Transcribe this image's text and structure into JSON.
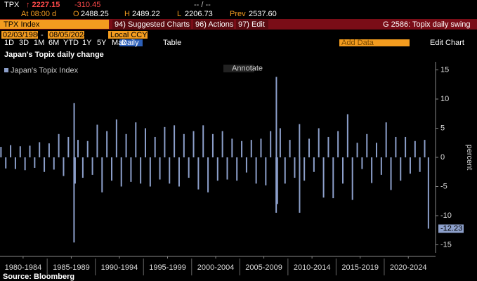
{
  "header": {
    "ticker": "TPX",
    "last": "↑ 2227.15",
    "change": "-310.45",
    "bid_ask": "-- / --",
    "time": "At 08:00 d",
    "open_label": "O",
    "open": "2488.25",
    "high_label": "H",
    "high": "2489.22",
    "low_label": "L",
    "low": "2206.73",
    "prev_label": "Prev",
    "prev": "2537.60"
  },
  "toolbar": {
    "security": "TPX Index",
    "suggested": "94) Suggested Charts",
    "actions": "96) Actions",
    "edit": "97) Edit",
    "chart_id": "G 2586: Topix daily swing",
    "start_date": "02/03/1980",
    "end_date": "08/05/2024",
    "currency": "Local CCY",
    "periods": [
      "1D",
      "3D",
      "1M",
      "6M",
      "YTD",
      "1Y",
      "5Y",
      "Max"
    ],
    "frequency": "Daily",
    "table": "Table",
    "add_data": "Add Data",
    "edit_chart": "Edit Chart",
    "annotate": "Annotate"
  },
  "chart_data": {
    "type": "bar",
    "title": "Japan's Topix daily change",
    "y_label": "percent",
    "x": [
      1980.2,
      1980.7,
      1981.2,
      1981.7,
      1982.2,
      1982.7,
      1983.2,
      1983.7,
      1984.2,
      1984.7,
      1985.2,
      1985.7,
      1986.2,
      1986.7,
      1987.2,
      1987.79,
      1987.8,
      1987.9,
      1988.2,
      1988.7,
      1989.2,
      1989.7,
      1990.2,
      1990.7,
      1991.2,
      1991.7,
      1992.2,
      1992.7,
      1993.2,
      1993.7,
      1994.2,
      1994.7,
      1995.2,
      1995.7,
      1996.2,
      1996.7,
      1997.2,
      1997.7,
      1998.2,
      1998.7,
      1999.2,
      1999.7,
      2000.2,
      2000.7,
      2001.2,
      2001.7,
      2002.2,
      2002.7,
      2003.2,
      2003.7,
      2004.2,
      2004.7,
      2005.2,
      2005.7,
      2006.2,
      2006.7,
      2007.2,
      2007.7,
      2008.2,
      2008.78,
      2008.8,
      2008.9,
      2009.2,
      2009.7,
      2010.2,
      2010.7,
      2011.2,
      2011.21,
      2011.7,
      2012.2,
      2012.7,
      2013.2,
      2013.7,
      2014.2,
      2014.7,
      2015.2,
      2015.7,
      2016.2,
      2016.7,
      2017.2,
      2017.7,
      2018.2,
      2018.7,
      2019.2,
      2019.7,
      2020.2,
      2020.7,
      2021.2,
      2021.7,
      2022.2,
      2022.7,
      2023.2,
      2023.7,
      2024.2,
      2024.59
    ],
    "series": [
      {
        "name": "Japan's Topix Index",
        "color": "#8c9fca",
        "values": [
          1.8,
          -1.9,
          2.1,
          -2.0,
          1.9,
          -2.2,
          2.0,
          -1.8,
          2.6,
          -2.5,
          2.4,
          -2.1,
          4.0,
          -3.2,
          3.5,
          -14.6,
          9.3,
          -4.5,
          3.0,
          -3.5,
          2.8,
          -3.0,
          5.6,
          -6.0,
          4.5,
          -4.0,
          6.5,
          -5.0,
          4.0,
          -4.2,
          6.0,
          -4.5,
          5.0,
          -5.0,
          3.5,
          -3.8,
          5.2,
          -4.5,
          5.5,
          -5.0,
          4.0,
          -3.5,
          4.5,
          -5.5,
          5.5,
          -6.0,
          4.0,
          -4.0,
          4.5,
          -3.8,
          3.2,
          -4.0,
          2.8,
          -2.6,
          3.0,
          -4.5,
          3.2,
          -4.8,
          4.5,
          -9.5,
          13.8,
          -8.0,
          5.0,
          -4.5,
          3.0,
          -3.5,
          5.7,
          -9.5,
          -4.0,
          3.2,
          -2.5,
          5.0,
          -6.9,
          3.5,
          -7.0,
          4.5,
          -4.5,
          7.4,
          -7.3,
          2.5,
          -2.0,
          4.0,
          -4.4,
          2.5,
          -3.0,
          6.0,
          -5.6,
          3.5,
          -4.0,
          3.5,
          -2.8,
          2.8,
          -2.5,
          3.0,
          -12.23
        ]
      }
    ],
    "xlim": [
      1980.1,
      2024.6
    ],
    "xticks": [
      {
        "value": 1982.5,
        "label": "1980-1984"
      },
      {
        "value": 1987.5,
        "label": "1985-1989"
      },
      {
        "value": 1992.5,
        "label": "1990-1994"
      },
      {
        "value": 1997.5,
        "label": "1995-1999"
      },
      {
        "value": 2002.5,
        "label": "2000-2004"
      },
      {
        "value": 2007.5,
        "label": "2005-2009"
      },
      {
        "value": 2012.5,
        "label": "2010-2014"
      },
      {
        "value": 2017.5,
        "label": "2015-2019"
      },
      {
        "value": 2022.5,
        "label": "2020-2024"
      }
    ],
    "ylim": [
      -15,
      15
    ],
    "yticks": [
      15,
      10,
      5,
      0,
      -5,
      -10,
      -15
    ],
    "grid": false,
    "legend": "top-left"
  },
  "source": "Source: Bloomberg"
}
